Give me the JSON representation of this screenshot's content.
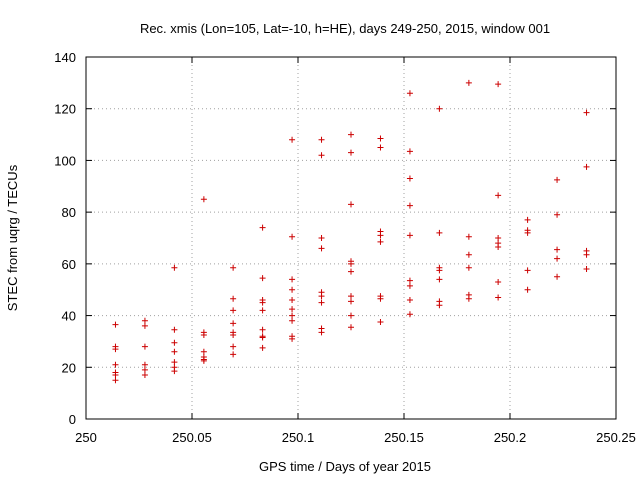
{
  "chart_data": {
    "type": "scatter",
    "title": "Rec. xmis (Lon=105, Lat=-10, h=HE), days 249-250, 2015, window 001",
    "xlabel": "GPS time / Days of year 2015",
    "ylabel": "STEC from uqrg / TECUs",
    "xlim": [
      250,
      250.25
    ],
    "ylim": [
      0,
      140
    ],
    "xticks": [
      250,
      250.05,
      250.1,
      250.15,
      250.2,
      250.25
    ],
    "xtick_labels": [
      "250",
      "250.05",
      "250.1",
      "250.15",
      "250.2",
      "250.25"
    ],
    "yticks": [
      0,
      20,
      40,
      60,
      80,
      100,
      120,
      140
    ],
    "ytick_labels": [
      "0",
      "20",
      "40",
      "60",
      "80",
      "100",
      "120",
      "140"
    ],
    "grid": true,
    "marker": "+",
    "color": "#cc0000",
    "points": [
      {
        "x": 250.0139,
        "y": 36.5
      },
      {
        "x": 250.0139,
        "y": 28
      },
      {
        "x": 250.0139,
        "y": 27
      },
      {
        "x": 250.0139,
        "y": 21
      },
      {
        "x": 250.0139,
        "y": 18
      },
      {
        "x": 250.0139,
        "y": 17
      },
      {
        "x": 250.0139,
        "y": 15
      },
      {
        "x": 250.0278,
        "y": 38
      },
      {
        "x": 250.0278,
        "y": 36
      },
      {
        "x": 250.0278,
        "y": 28
      },
      {
        "x": 250.0278,
        "y": 21
      },
      {
        "x": 250.0278,
        "y": 19
      },
      {
        "x": 250.0278,
        "y": 17
      },
      {
        "x": 250.0417,
        "y": 58.5
      },
      {
        "x": 250.0417,
        "y": 34.5
      },
      {
        "x": 250.0417,
        "y": 29.5
      },
      {
        "x": 250.0417,
        "y": 26
      },
      {
        "x": 250.0417,
        "y": 22
      },
      {
        "x": 250.0417,
        "y": 20
      },
      {
        "x": 250.0417,
        "y": 18.5
      },
      {
        "x": 250.0556,
        "y": 85
      },
      {
        "x": 250.0556,
        "y": 33.5
      },
      {
        "x": 250.0556,
        "y": 32.5
      },
      {
        "x": 250.0556,
        "y": 26
      },
      {
        "x": 250.0556,
        "y": 24
      },
      {
        "x": 250.0556,
        "y": 23
      },
      {
        "x": 250.0556,
        "y": 22.5
      },
      {
        "x": 250.0694,
        "y": 58.5
      },
      {
        "x": 250.0694,
        "y": 46.5
      },
      {
        "x": 250.0694,
        "y": 42
      },
      {
        "x": 250.0694,
        "y": 37
      },
      {
        "x": 250.0694,
        "y": 33.5
      },
      {
        "x": 250.0694,
        "y": 32.5
      },
      {
        "x": 250.0694,
        "y": 28
      },
      {
        "x": 250.0694,
        "y": 25
      },
      {
        "x": 250.0833,
        "y": 74
      },
      {
        "x": 250.0833,
        "y": 54.5
      },
      {
        "x": 250.0833,
        "y": 46
      },
      {
        "x": 250.0833,
        "y": 45
      },
      {
        "x": 250.0833,
        "y": 42
      },
      {
        "x": 250.0833,
        "y": 34.5
      },
      {
        "x": 250.0833,
        "y": 32
      },
      {
        "x": 250.0833,
        "y": 31.5
      },
      {
        "x": 250.0833,
        "y": 27.5
      },
      {
        "x": 250.0972,
        "y": 108
      },
      {
        "x": 250.0972,
        "y": 70.5
      },
      {
        "x": 250.0972,
        "y": 54
      },
      {
        "x": 250.0972,
        "y": 50
      },
      {
        "x": 250.0972,
        "y": 46
      },
      {
        "x": 250.0972,
        "y": 42.5
      },
      {
        "x": 250.0972,
        "y": 40
      },
      {
        "x": 250.0972,
        "y": 38
      },
      {
        "x": 250.0972,
        "y": 32
      },
      {
        "x": 250.0972,
        "y": 31
      },
      {
        "x": 250.1111,
        "y": 108
      },
      {
        "x": 250.1111,
        "y": 102
      },
      {
        "x": 250.1111,
        "y": 70
      },
      {
        "x": 250.1111,
        "y": 66
      },
      {
        "x": 250.1111,
        "y": 49
      },
      {
        "x": 250.1111,
        "y": 47.5
      },
      {
        "x": 250.1111,
        "y": 45
      },
      {
        "x": 250.1111,
        "y": 35
      },
      {
        "x": 250.1111,
        "y": 33.5
      },
      {
        "x": 250.125,
        "y": 110
      },
      {
        "x": 250.125,
        "y": 103
      },
      {
        "x": 250.125,
        "y": 83
      },
      {
        "x": 250.125,
        "y": 61
      },
      {
        "x": 250.125,
        "y": 60
      },
      {
        "x": 250.125,
        "y": 57
      },
      {
        "x": 250.125,
        "y": 47.5
      },
      {
        "x": 250.125,
        "y": 45.5
      },
      {
        "x": 250.125,
        "y": 40
      },
      {
        "x": 250.125,
        "y": 35.5
      },
      {
        "x": 250.1389,
        "y": 108.5
      },
      {
        "x": 250.1389,
        "y": 105
      },
      {
        "x": 250.1389,
        "y": 72.5
      },
      {
        "x": 250.1389,
        "y": 71
      },
      {
        "x": 250.1389,
        "y": 68.5
      },
      {
        "x": 250.1389,
        "y": 47.5
      },
      {
        "x": 250.1389,
        "y": 46.5
      },
      {
        "x": 250.1389,
        "y": 37.5
      },
      {
        "x": 250.1528,
        "y": 126
      },
      {
        "x": 250.1528,
        "y": 103.5
      },
      {
        "x": 250.1528,
        "y": 93
      },
      {
        "x": 250.1528,
        "y": 82.5
      },
      {
        "x": 250.1528,
        "y": 71
      },
      {
        "x": 250.1528,
        "y": 53.5
      },
      {
        "x": 250.1528,
        "y": 51.5
      },
      {
        "x": 250.1528,
        "y": 46
      },
      {
        "x": 250.1528,
        "y": 40.5
      },
      {
        "x": 250.1667,
        "y": 120
      },
      {
        "x": 250.1667,
        "y": 72
      },
      {
        "x": 250.1667,
        "y": 58.5
      },
      {
        "x": 250.1667,
        "y": 57.5
      },
      {
        "x": 250.1667,
        "y": 54
      },
      {
        "x": 250.1667,
        "y": 45.5
      },
      {
        "x": 250.1667,
        "y": 44
      },
      {
        "x": 250.1806,
        "y": 130
      },
      {
        "x": 250.1806,
        "y": 70.5
      },
      {
        "x": 250.1806,
        "y": 63.5
      },
      {
        "x": 250.1806,
        "y": 58.5
      },
      {
        "x": 250.1806,
        "y": 48
      },
      {
        "x": 250.1806,
        "y": 46.5
      },
      {
        "x": 250.1944,
        "y": 129.5
      },
      {
        "x": 250.1944,
        "y": 86.5
      },
      {
        "x": 250.1944,
        "y": 70
      },
      {
        "x": 250.1944,
        "y": 68
      },
      {
        "x": 250.1944,
        "y": 66.5
      },
      {
        "x": 250.1944,
        "y": 53
      },
      {
        "x": 250.1944,
        "y": 47
      },
      {
        "x": 250.2083,
        "y": 77
      },
      {
        "x": 250.2083,
        "y": 73
      },
      {
        "x": 250.2083,
        "y": 72
      },
      {
        "x": 250.2083,
        "y": 57.5
      },
      {
        "x": 250.2083,
        "y": 50
      },
      {
        "x": 250.2222,
        "y": 92.5
      },
      {
        "x": 250.2222,
        "y": 79
      },
      {
        "x": 250.2222,
        "y": 65.5
      },
      {
        "x": 250.2222,
        "y": 62
      },
      {
        "x": 250.2222,
        "y": 55
      },
      {
        "x": 250.2361,
        "y": 118.5
      },
      {
        "x": 250.2361,
        "y": 97.5
      },
      {
        "x": 250.2361,
        "y": 65
      },
      {
        "x": 250.2361,
        "y": 63.5
      },
      {
        "x": 250.2361,
        "y": 58
      }
    ]
  }
}
